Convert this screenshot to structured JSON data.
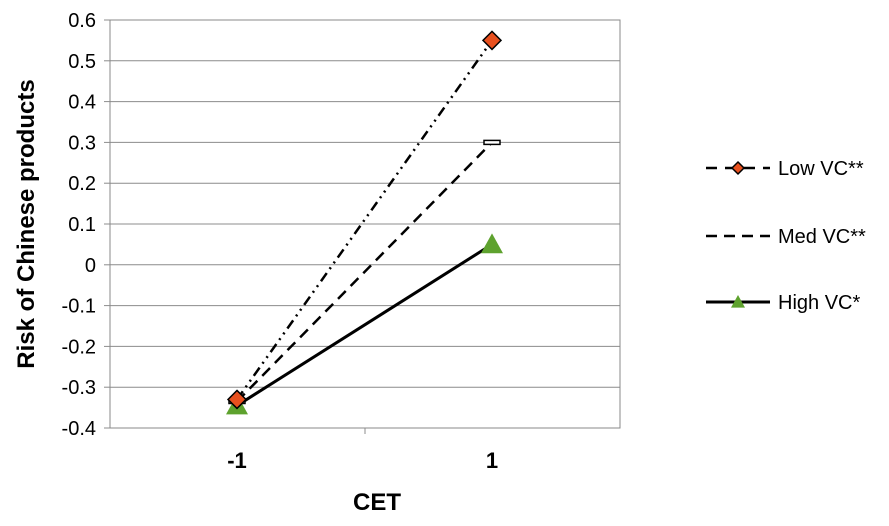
{
  "chart_data": {
    "type": "line",
    "title": "",
    "xlabel": "CET",
    "ylabel": "Risk of Chinese products",
    "categories": [
      "-1",
      "1"
    ],
    "ylim": [
      -0.4,
      0.6
    ],
    "yticks": [
      "0.6",
      "0.5",
      "0.4",
      "0.3",
      "0.2",
      "0.1",
      "0",
      "-0.1",
      "-0.2",
      "-0.3",
      "-0.4"
    ],
    "ytick_values": [
      0.6,
      0.5,
      0.4,
      0.3,
      0.2,
      0.1,
      0,
      -0.1,
      -0.2,
      -0.3,
      -0.4
    ],
    "grid": "horizontal",
    "legend_position": "right",
    "series": [
      {
        "name": "Low VC**",
        "values": [
          -0.33,
          0.55
        ],
        "color": "#E8501E",
        "marker": "diamond",
        "line_style": "dash-dot-dot"
      },
      {
        "name": "Med VC**",
        "values": [
          -0.335,
          0.3
        ],
        "color": "#000000",
        "marker": "dash",
        "line_style": "dashed"
      },
      {
        "name": "High VC*",
        "values": [
          -0.345,
          0.05
        ],
        "color": "#5EA22E",
        "marker": "triangle",
        "line_style": "solid"
      }
    ]
  }
}
